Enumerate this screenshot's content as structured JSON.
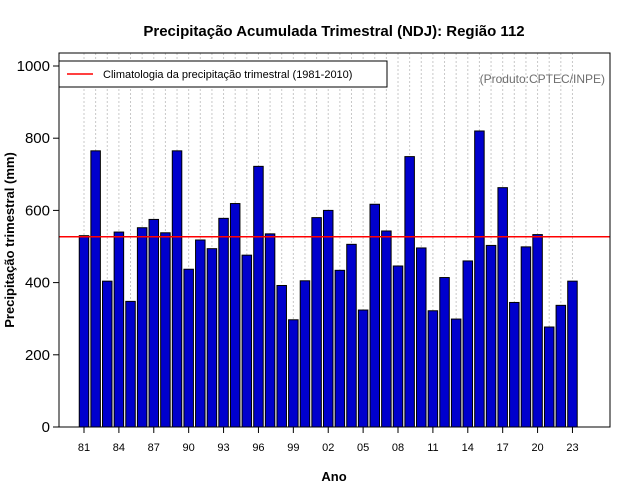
{
  "chart_data": {
    "type": "bar",
    "title": "Precipitação Acumulada Trimestral (NDJ): Região 112",
    "xlabel": "Ano",
    "ylabel": "Precipitação trimestral (mm)",
    "ylim": [
      0,
      1000
    ],
    "yticks": [
      0,
      200,
      400,
      600,
      800,
      1000
    ],
    "categories": [
      "81",
      "82",
      "83",
      "84",
      "85",
      "86",
      "87",
      "88",
      "89",
      "90",
      "91",
      "92",
      "93",
      "94",
      "95",
      "96",
      "97",
      "98",
      "99",
      "00",
      "01",
      "02",
      "03",
      "04",
      "05",
      "06",
      "07",
      "08",
      "09",
      "10",
      "11",
      "12",
      "13",
      "14",
      "15",
      "16",
      "17",
      "18",
      "19",
      "20",
      "21",
      "22",
      "23"
    ],
    "xtick_labels": [
      "81",
      "84",
      "87",
      "90",
      "93",
      "96",
      "99",
      "02",
      "05",
      "08",
      "11",
      "14",
      "17",
      "20",
      "23"
    ],
    "values": [
      530,
      765,
      404,
      540,
      348,
      552,
      575,
      538,
      765,
      437,
      518,
      494,
      578,
      619,
      476,
      722,
      535,
      392,
      297,
      405,
      580,
      600,
      434,
      506,
      324,
      617,
      543,
      446,
      749,
      496,
      322,
      414,
      299,
      460,
      820,
      503,
      663,
      345,
      499,
      533,
      277,
      337,
      404
    ],
    "climatology": 527,
    "legend": "Climatologia da precipitação trimestral (1981-2010)",
    "credit": "(Produto:CPTEC/INPE)",
    "colors": {
      "bar": "#0000cd",
      "bar_edge": "#000000",
      "climatology": "#ff0000",
      "grid": "#c8c8c8"
    }
  }
}
